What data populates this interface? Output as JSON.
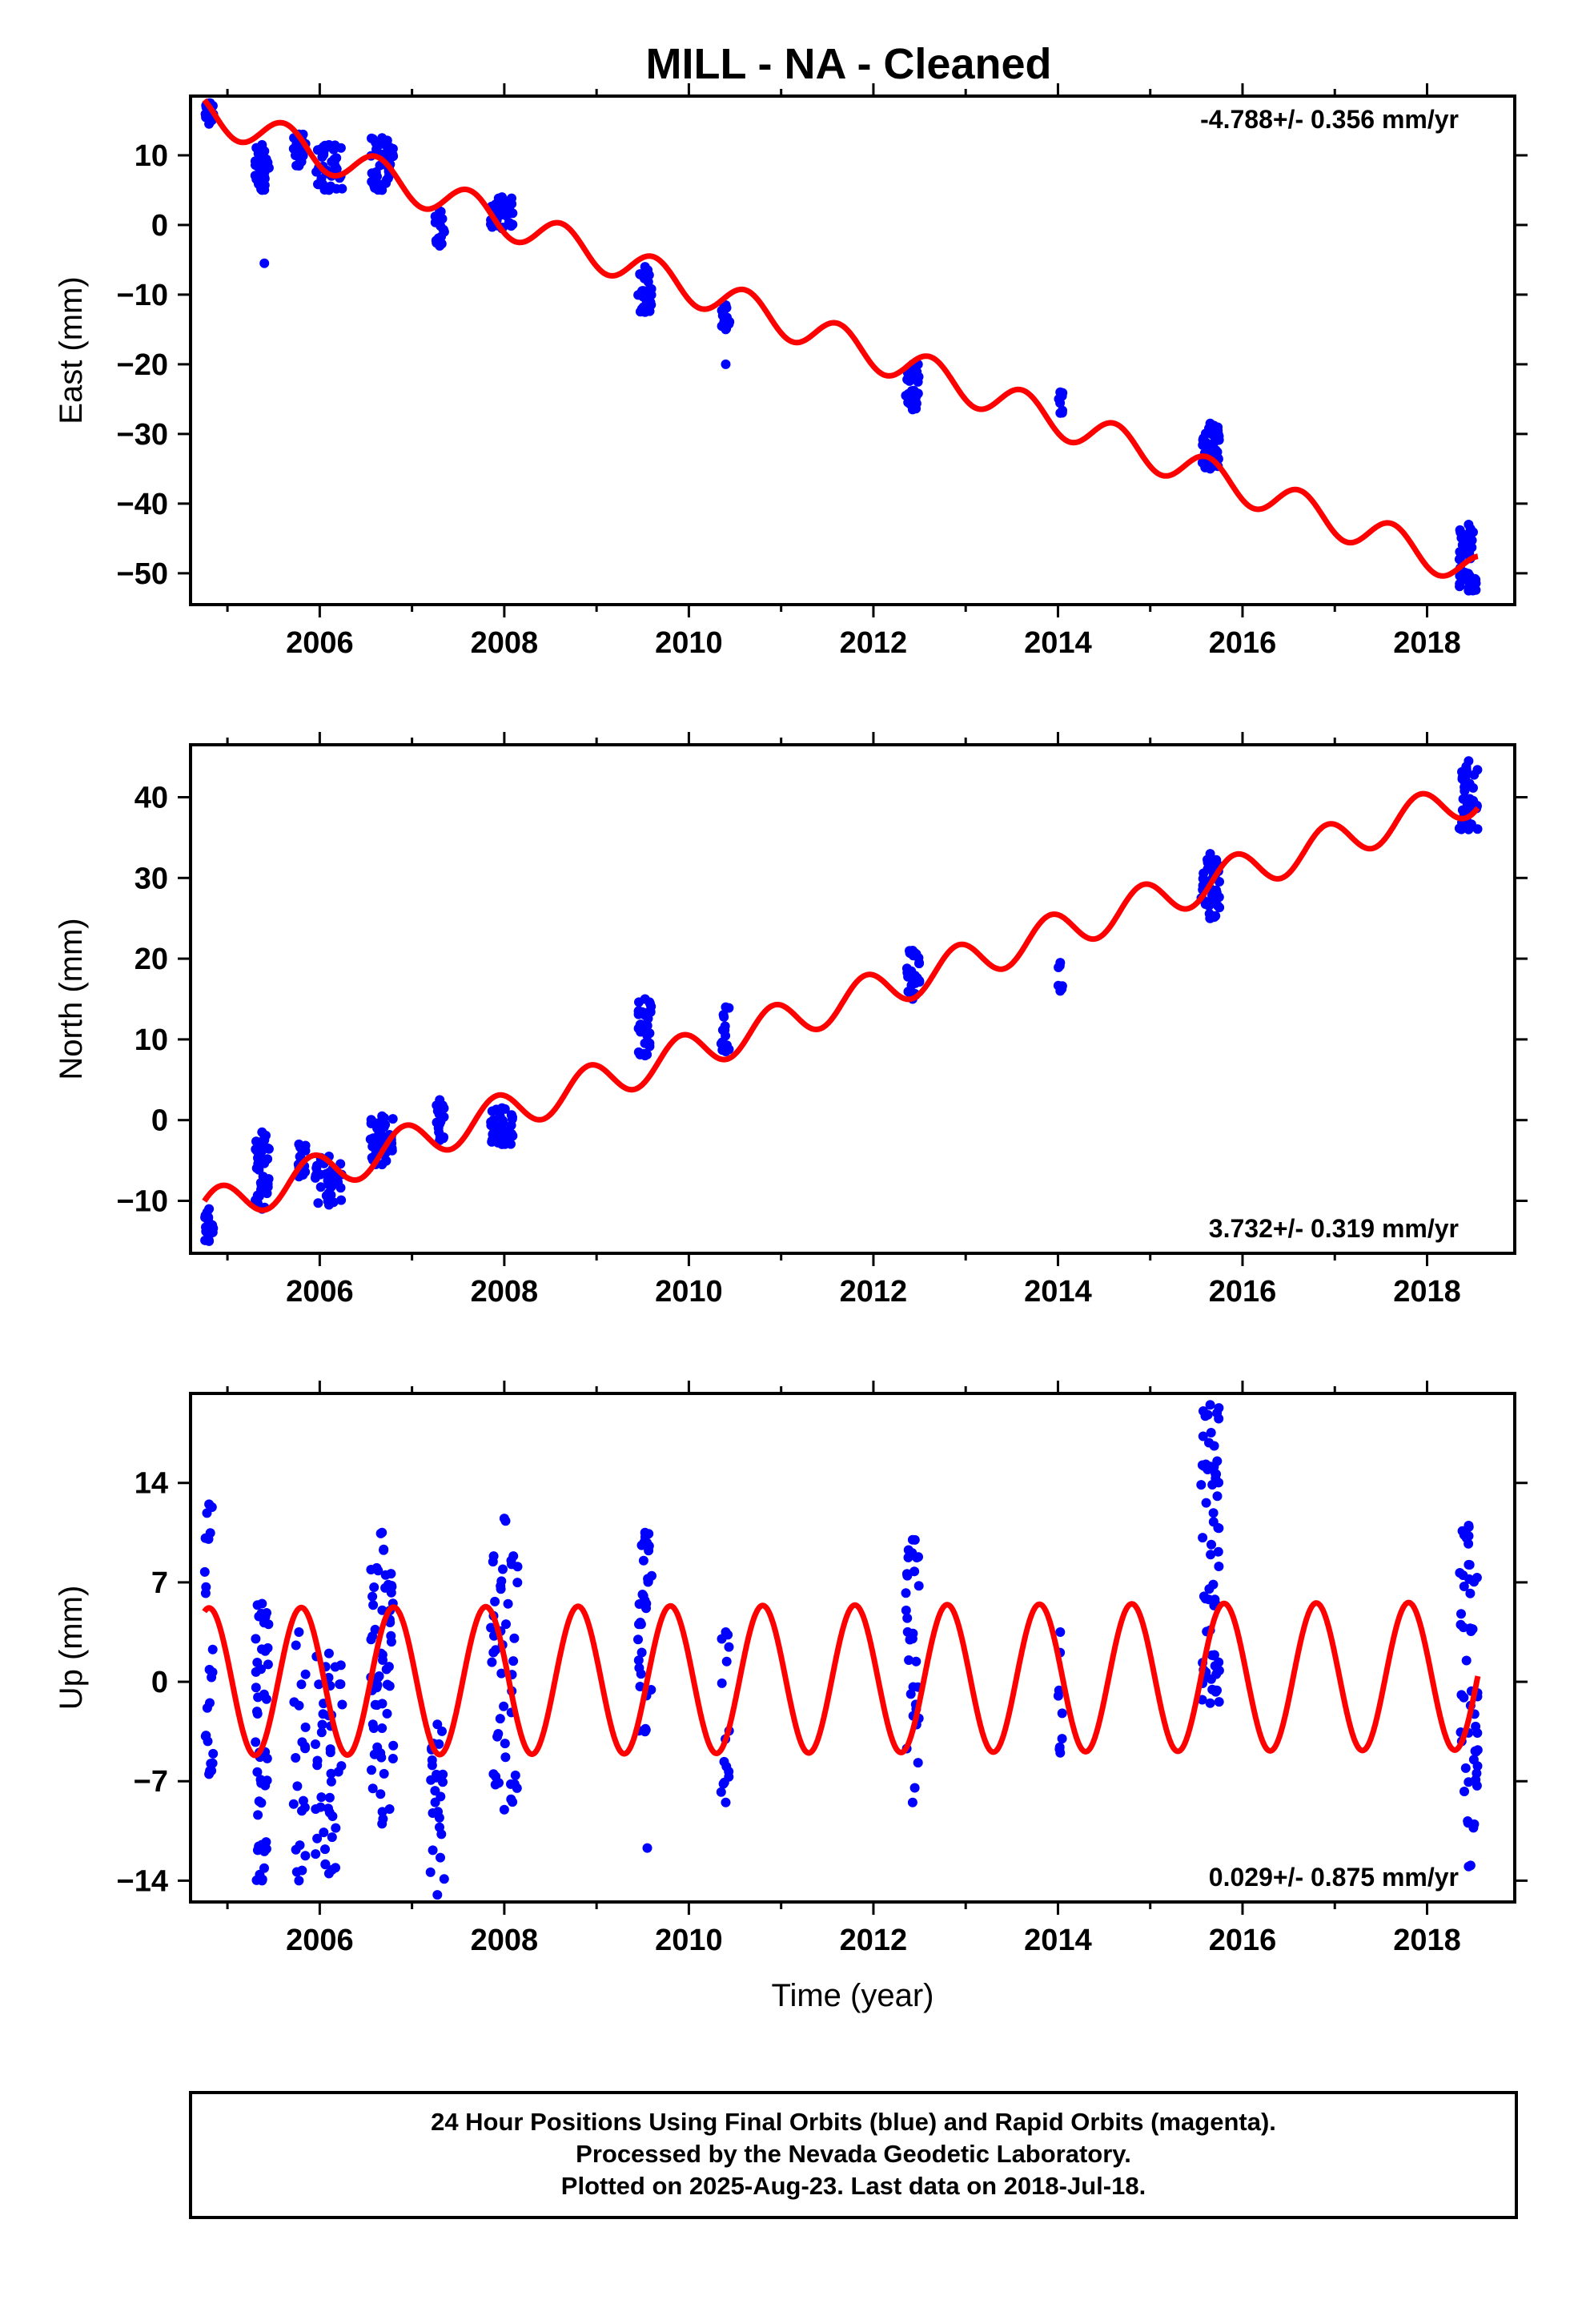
{
  "title": "MILL  - NA - Cleaned",
  "colors": {
    "points": "#0000ff",
    "fit": "#ff0000",
    "frame": "#000000"
  },
  "footer": {
    "line1": "24 Hour Positions Using Final Orbits (blue) and Rapid Orbits (magenta).",
    "line2": "Processed by the Nevada Geodetic Laboratory.",
    "line3": "Plotted on 2025-Aug-23. Last data on 2018-Jul-18."
  },
  "chart_data": [
    {
      "type": "scatter",
      "ylabel": "East (mm)",
      "xlabel": "",
      "rate": "-4.788+/- 0.356 mm/yr",
      "rate_position": "top-right",
      "xlim": [
        2004.6,
        2018.95
      ],
      "ylim": [
        -54.5,
        18.5
      ],
      "xticks": [
        2006,
        2008,
        2010,
        2012,
        2014,
        2016,
        2018
      ],
      "yticks": [
        10,
        0,
        -10,
        -20,
        -30,
        -40,
        -50
      ],
      "fit": {
        "name": "",
        "t0": 2004.8,
        "intercept": 16.0,
        "slope": -4.788,
        "amplitude": 2.5,
        "phase_year": 2005.62
      },
      "clusters": [
        {
          "t": [
            2004.75,
            2004.85
          ],
          "y": [
            14.5,
            17.5
          ],
          "n": 22
        },
        {
          "t": [
            2005.3,
            2005.45
          ],
          "y": [
            5,
            11.5
          ],
          "n": 36
        },
        {
          "t": [
            2005.7,
            2005.85
          ],
          "y": [
            8.5,
            13
          ],
          "n": 20
        },
        {
          "t": [
            2005.95,
            2006.25
          ],
          "y": [
            5,
            11.5
          ],
          "n": 40
        },
        {
          "t": [
            2006.55,
            2006.8
          ],
          "y": [
            5,
            12.5
          ],
          "n": 48
        },
        {
          "t": [
            2007.25,
            2007.35
          ],
          "y": [
            -3,
            2
          ],
          "n": 16
        },
        {
          "t": [
            2007.85,
            2008.1
          ],
          "y": [
            -0.5,
            4
          ],
          "n": 40
        },
        {
          "t": [
            2009.45,
            2009.6
          ],
          "y": [
            -12.5,
            -6
          ],
          "n": 30
        },
        {
          "t": [
            2010.35,
            2010.45
          ],
          "y": [
            -15,
            -11.5
          ],
          "n": 14
        },
        {
          "t": [
            2012.35,
            2012.5
          ],
          "y": [
            -26.5,
            -20
          ],
          "n": 26
        },
        {
          "t": [
            2014.0,
            2014.05
          ],
          "y": [
            -27,
            -24
          ],
          "n": 8
        },
        {
          "t": [
            2015.55,
            2015.75
          ],
          "y": [
            -35,
            -28.5
          ],
          "n": 48
        },
        {
          "t": [
            2018.35,
            2018.55
          ],
          "y": [
            -52.5,
            -43
          ],
          "n": 46
        }
      ],
      "outliers": [
        {
          "x": 2005.4,
          "y": -5.5
        },
        {
          "x": 2010.4,
          "y": -20
        }
      ]
    },
    {
      "type": "scatter",
      "ylabel": "North (mm)",
      "xlabel": "",
      "rate": "3.732+/- 0.319 mm/yr",
      "rate_position": "bottom-right",
      "xlim": [
        2004.6,
        2018.95
      ],
      "ylim": [
        -16.5,
        46.5
      ],
      "xticks": [
        2006,
        2008,
        2010,
        2012,
        2014,
        2016,
        2018
      ],
      "yticks": [
        40,
        30,
        20,
        10,
        0,
        -10
      ],
      "fit": {
        "name": "",
        "t0": 2004.8,
        "intercept": -11.0,
        "slope": 3.732,
        "amplitude": 2.4,
        "phase_year": 2004.92
      },
      "clusters": [
        {
          "t": [
            2004.75,
            2004.85
          ],
          "y": [
            -15,
            -11
          ],
          "n": 16
        },
        {
          "t": [
            2005.3,
            2005.45
          ],
          "y": [
            -11,
            -1.5
          ],
          "n": 40
        },
        {
          "t": [
            2005.7,
            2005.85
          ],
          "y": [
            -7,
            -3
          ],
          "n": 14
        },
        {
          "t": [
            2005.95,
            2006.25
          ],
          "y": [
            -10.5,
            -4.5
          ],
          "n": 36
        },
        {
          "t": [
            2006.55,
            2006.8
          ],
          "y": [
            -5.5,
            0.5
          ],
          "n": 46
        },
        {
          "t": [
            2007.25,
            2007.35
          ],
          "y": [
            -2.5,
            2.5
          ],
          "n": 16
        },
        {
          "t": [
            2007.85,
            2008.1
          ],
          "y": [
            -3,
            1.5
          ],
          "n": 40
        },
        {
          "t": [
            2009.45,
            2009.6
          ],
          "y": [
            8,
            15
          ],
          "n": 32
        },
        {
          "t": [
            2010.35,
            2010.45
          ],
          "y": [
            8.5,
            14
          ],
          "n": 12
        },
        {
          "t": [
            2012.35,
            2012.5
          ],
          "y": [
            15,
            21
          ],
          "n": 26
        },
        {
          "t": [
            2014.0,
            2014.05
          ],
          "y": [
            16,
            19.5
          ],
          "n": 6
        },
        {
          "t": [
            2015.55,
            2015.75
          ],
          "y": [
            25,
            33
          ],
          "n": 48
        },
        {
          "t": [
            2018.35,
            2018.55
          ],
          "y": [
            36,
            44.5
          ],
          "n": 46
        }
      ],
      "outliers": []
    },
    {
      "type": "scatter",
      "ylabel": "Up (mm)",
      "xlabel": "Time (year)",
      "rate": "0.029+/- 0.875 mm/yr",
      "rate_position": "bottom-right",
      "xlim": [
        2004.6,
        2018.95
      ],
      "ylim": [
        -15.5,
        20.3
      ],
      "xticks": [
        2006,
        2008,
        2010,
        2012,
        2014,
        2016,
        2018
      ],
      "yticks": [
        14,
        7,
        0,
        -7,
        -14
      ],
      "fit": {
        "name": "",
        "t0": 2004.8,
        "intercept": 0.0,
        "slope": 0.029,
        "amplitude": 5.2,
        "phase_year": 2004.8
      },
      "clusters": [
        {
          "t": [
            2004.75,
            2004.85
          ],
          "y": [
            -6.5,
            12.5
          ],
          "n": 22
        },
        {
          "t": [
            2005.3,
            2005.45
          ],
          "y": [
            -14,
            5.5
          ],
          "n": 48
        },
        {
          "t": [
            2005.7,
            2005.85
          ],
          "y": [
            -14,
            3.5
          ],
          "n": 20
        },
        {
          "t": [
            2005.95,
            2006.25
          ],
          "y": [
            -13.5,
            2
          ],
          "n": 44
        },
        {
          "t": [
            2006.55,
            2006.8
          ],
          "y": [
            -10,
            10.5
          ],
          "n": 60
        },
        {
          "t": [
            2007.2,
            2007.35
          ],
          "y": [
            -15,
            -3
          ],
          "n": 24
        },
        {
          "t": [
            2007.85,
            2008.15
          ],
          "y": [
            -9,
            11.5
          ],
          "n": 48
        },
        {
          "t": [
            2009.45,
            2009.6
          ],
          "y": [
            -3.5,
            10.5
          ],
          "n": 34
        },
        {
          "t": [
            2010.35,
            2010.45
          ],
          "y": [
            -8.5,
            3.5
          ],
          "n": 14
        },
        {
          "t": [
            2012.35,
            2012.5
          ],
          "y": [
            -8.5,
            10
          ],
          "n": 30
        },
        {
          "t": [
            2014.0,
            2014.05
          ],
          "y": [
            -5,
            3.5
          ],
          "n": 8
        },
        {
          "t": [
            2015.55,
            2015.75
          ],
          "y": [
            -1.5,
            19.5
          ],
          "n": 64
        },
        {
          "t": [
            2018.35,
            2018.55
          ],
          "y": [
            -13,
            11
          ],
          "n": 50
        }
      ],
      "outliers": [
        {
          "x": 2009.55,
          "y": -11.7
        }
      ]
    }
  ]
}
